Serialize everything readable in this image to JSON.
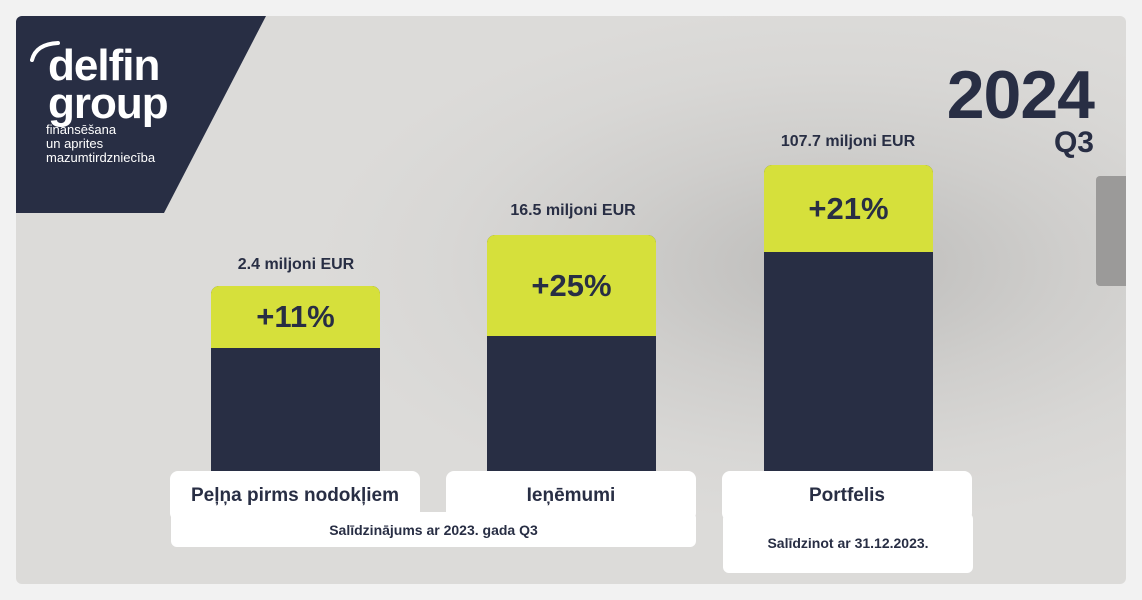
{
  "logo": {
    "word1": "delfin",
    "word2": "group",
    "tagline": [
      "finansēšana",
      "un aprites",
      "mazumtirdzniecība"
    ]
  },
  "period": {
    "year": "2024",
    "quarter": "Q3"
  },
  "colors": {
    "navy": "#282e44",
    "lime": "#d6e03b",
    "white": "#ffffff"
  },
  "chart_data": {
    "type": "bar",
    "categories": [
      "Peļņa pirms nodokļiem",
      "Ieņēmumi",
      "Portfelis"
    ],
    "value_labels": [
      "2.4 miljoni EUR",
      "16.5 miljoni EUR",
      "107.7 miljoni EUR"
    ],
    "growth_labels": [
      "+11%",
      "+25%",
      "+21%"
    ],
    "growth": [
      11,
      25,
      21
    ],
    "comparison_notes": [
      "Salīdzinājums ar 2023. gada Q3",
      "Salīdzinot ar 31.12.2023."
    ]
  }
}
